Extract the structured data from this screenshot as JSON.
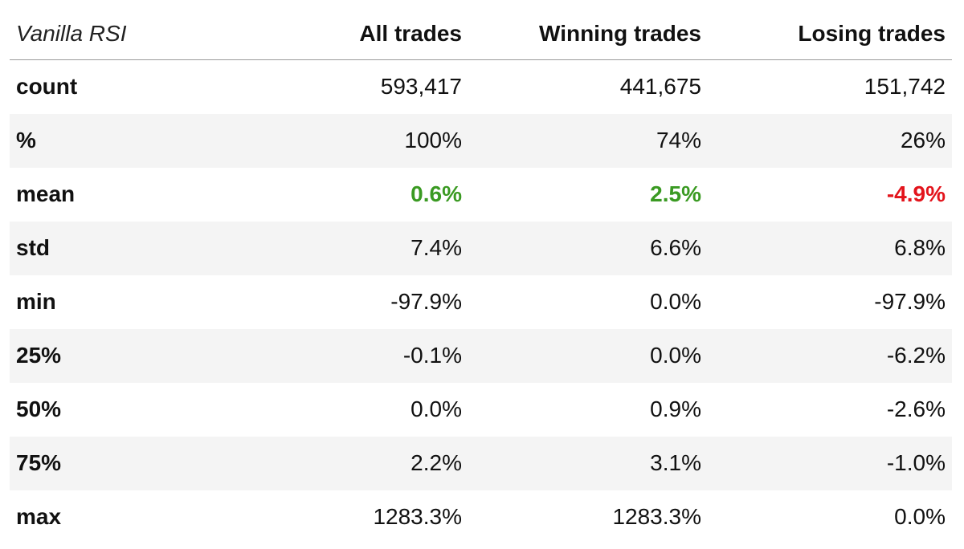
{
  "table": {
    "title": "Vanilla RSI",
    "columns": [
      "All trades",
      "Winning trades",
      "Losing trades"
    ],
    "colors": {
      "positive": "#3a9a22",
      "negative": "#e3141c",
      "stripe": "#f4f4f4"
    },
    "rows": [
      {
        "label": "count",
        "values": [
          "593,417",
          "441,675",
          "151,742"
        ]
      },
      {
        "label": "%",
        "values": [
          "100%",
          "74%",
          "26%"
        ]
      },
      {
        "label": "mean",
        "values": [
          "0.6%",
          "2.5%",
          "-4.9%"
        ],
        "emphasis": [
          "pos",
          "pos",
          "neg"
        ]
      },
      {
        "label": "std",
        "values": [
          "7.4%",
          "6.6%",
          "6.8%"
        ]
      },
      {
        "label": "min",
        "values": [
          "-97.9%",
          "0.0%",
          "-97.9%"
        ]
      },
      {
        "label": "25%",
        "values": [
          "-0.1%",
          "0.0%",
          "-6.2%"
        ]
      },
      {
        "label": "50%",
        "values": [
          "0.0%",
          "0.9%",
          "-2.6%"
        ]
      },
      {
        "label": "75%",
        "values": [
          "2.2%",
          "3.1%",
          "-1.0%"
        ]
      },
      {
        "label": "max",
        "values": [
          "1283.3%",
          "1283.3%",
          "0.0%"
        ]
      }
    ]
  }
}
